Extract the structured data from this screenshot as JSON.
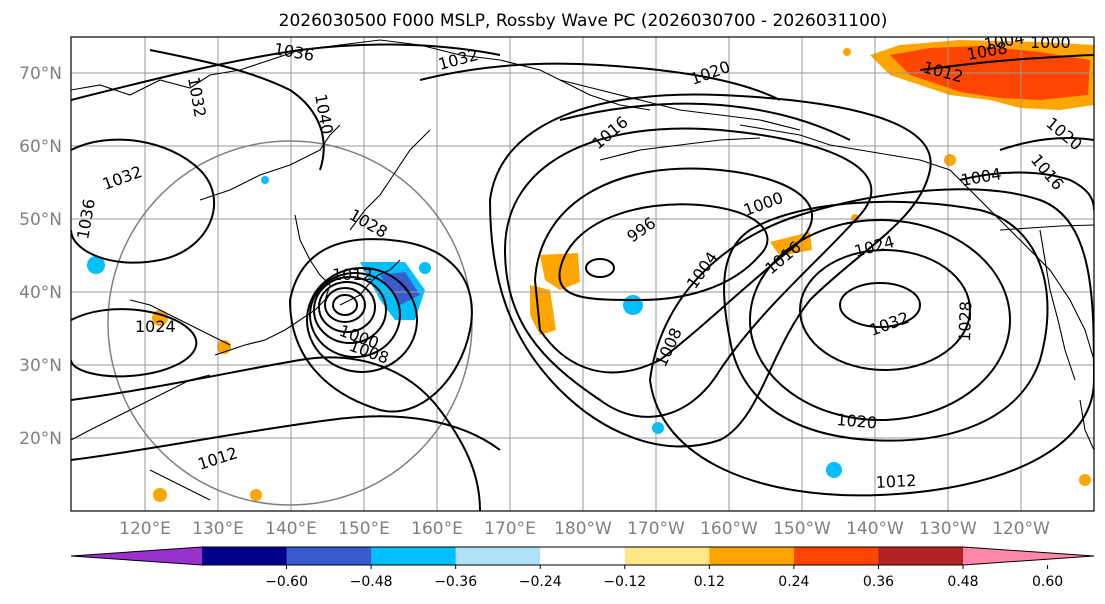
{
  "title": "2026030500 F000 MSLP, Rossby Wave PC (2026030700 - 2026031100)",
  "lat_ticks": [
    "70°N",
    "60°N",
    "50°N",
    "40°N",
    "30°N",
    "20°N"
  ],
  "lon_ticks": [
    "120°E",
    "130°E",
    "140°E",
    "150°E",
    "160°E",
    "170°E",
    "180°W",
    "170°W",
    "160°W",
    "150°W",
    "140°W",
    "130°W",
    "120°W"
  ],
  "colorbar": {
    "colors": [
      "#9932cc",
      "#00008b",
      "#3a5bcd",
      "#00bfff",
      "#b0e0fa",
      "#ffffff",
      "#ffe787",
      "#ffa500",
      "#ff4500",
      "#b22222",
      "#ff87aa"
    ],
    "labels": [
      "−0.60",
      "−0.48",
      "−0.36",
      "−0.24",
      "−0.12",
      "0.12",
      "0.24",
      "0.36",
      "0.48",
      "0.60"
    ]
  },
  "contour_labels": {
    "c1036": "1036",
    "c1032a": "1032",
    "c1032b": "1032",
    "c1032c": "1032",
    "c1036b": "1036",
    "c1020a": "1020",
    "c1016a": "1016",
    "c1028a": "1028",
    "c1012a": "1012",
    "c1000a": "1000",
    "c1008a": "1008",
    "c1024a": "1024",
    "c1012b": "1012",
    "c996": "996",
    "c1000b": "1000",
    "c1004a": "1004",
    "c1008b": "1008",
    "c1016b": "1016",
    "c1024b": "1024",
    "c1032d": "1032",
    "c1028b": "1028",
    "c1020b": "1020",
    "c1012c": "1012",
    "c1004b": "1004",
    "c1012d": "1012",
    "c1016c": "1016",
    "c1020c": "1020",
    "c1008c": "1008",
    "c1004c": "1004",
    "c1000c": "1000",
    "c1040": "1040"
  }
}
